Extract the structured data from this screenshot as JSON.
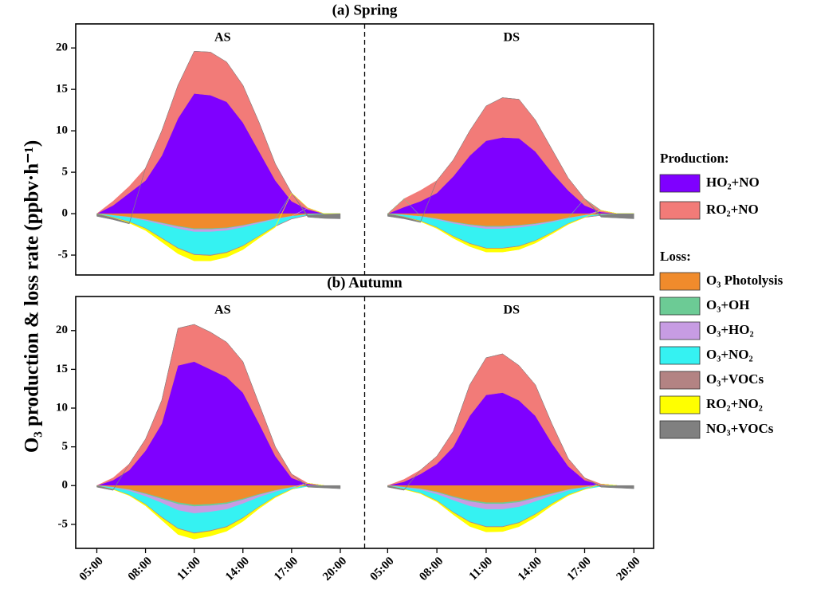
{
  "y_label": "O₃ production & loss rate (ppbv·h⁻¹)",
  "legend": {
    "groups": [
      {
        "title": "Production:",
        "start": 0,
        "count": 2
      },
      {
        "title": "Loss:",
        "start": 2,
        "count": 7
      }
    ]
  },
  "series": [
    {
      "name": "HO₂+NO",
      "color": "#7f00ff"
    },
    {
      "name": "RO₂+NO",
      "color": "#f27b78"
    },
    {
      "name": "O₃ Photolysis",
      "color": "#f08b2c"
    },
    {
      "name": "O₃+OH",
      "color": "#6ccb95"
    },
    {
      "name": "O₃+HO₂",
      "color": "#c79ce3"
    },
    {
      "name": "O₃+NO₂",
      "color": "#35f2f2"
    },
    {
      "name": "O₃+VOCs",
      "color": "#b38383"
    },
    {
      "name": "RO₂+NO₂",
      "color": "#ffff00"
    },
    {
      "name": "NO₃+VOCs",
      "color": "#808080"
    }
  ],
  "chart_data": [
    {
      "type": "stacked_area",
      "title": "(a) Spring",
      "ylim": [
        -7.4,
        22.9
      ],
      "yticks": [
        -5,
        0,
        5,
        10,
        15,
        20
      ],
      "sections": [
        {
          "label": "AS",
          "xlim": [
            3.7,
            21.5
          ],
          "x": [
            5,
            6,
            7,
            8,
            9,
            10,
            11,
            12,
            13,
            14,
            15,
            16,
            17,
            18,
            19,
            20
          ],
          "values": [
            [
              0,
              1,
              2.5,
              4,
              7,
              11.5,
              14.5,
              14.3,
              13.5,
              11,
              7.5,
              4,
              1.5,
              0.5,
              0,
              0
            ],
            [
              0,
              0.5,
              0.8,
              1.5,
              3,
              4,
              5.1,
              5.2,
              4.8,
              4.5,
              3.5,
              2,
              1,
              0.2,
              0,
              0
            ],
            [
              0,
              -0.2,
              -0.4,
              -0.7,
              -1.1,
              -1.5,
              -1.8,
              -1.8,
              -1.7,
              -1.4,
              -1,
              -0.6,
              -0.3,
              -0.1,
              -0.05,
              0
            ],
            [
              0,
              -0.01,
              -0.02,
              -0.04,
              -0.06,
              -0.08,
              -0.1,
              -0.1,
              -0.08,
              -0.06,
              -0.04,
              -0.02,
              0,
              0,
              0,
              0
            ],
            [
              0,
              -0.03,
              -0.06,
              -0.12,
              -0.18,
              -0.25,
              -0.3,
              -0.3,
              -0.27,
              -0.2,
              -0.14,
              -0.07,
              -0.02,
              0,
              0,
              0
            ],
            [
              0,
              -0.2,
              -0.5,
              -0.9,
              -1.6,
              -2.3,
              -2.7,
              -2.8,
              -2.6,
              -2.2,
              -1.5,
              -0.8,
              -0.3,
              -0.1,
              0,
              0
            ],
            [
              -0.02,
              -0.03,
              -0.05,
              -0.06,
              -0.08,
              -0.1,
              -0.1,
              -0.1,
              -0.1,
              -0.08,
              -0.06,
              -0.05,
              -0.03,
              -0.02,
              -0.02,
              -0.02
            ],
            [
              0,
              -0.05,
              -0.1,
              -0.2,
              -0.4,
              -0.6,
              -0.7,
              -0.6,
              -0.5,
              -0.4,
              -0.2,
              -0.1,
              0,
              0,
              0,
              0
            ],
            [
              -0.3,
              -0.2,
              -0.1,
              0,
              0,
              0,
              0,
              0,
              0,
              0,
              0,
              0,
              0,
              -0.2,
              -0.5,
              -0.6
            ]
          ]
        },
        {
          "label": "DS",
          "xlim": [
            3.6,
            21.2
          ],
          "x": [
            5,
            6,
            7,
            8,
            9,
            10,
            11,
            12,
            13,
            14,
            15,
            16,
            17,
            18,
            19,
            20
          ],
          "values": [
            [
              0,
              0.8,
              1.5,
              2.5,
              4.5,
              7,
              8.8,
              9.2,
              9.1,
              7.5,
              5,
              2.8,
              1,
              0.2,
              0,
              0
            ],
            [
              0,
              1,
              1.3,
              1.5,
              2,
              3,
              4.2,
              4.8,
              4.7,
              3.8,
              2.8,
              1.5,
              0.8,
              0.2,
              0,
              0
            ],
            [
              0,
              -0.15,
              -0.3,
              -0.6,
              -1,
              -1.3,
              -1.5,
              -1.5,
              -1.4,
              -1.2,
              -0.9,
              -0.5,
              -0.2,
              -0.1,
              0,
              0
            ],
            [
              0,
              0,
              -0.02,
              -0.04,
              -0.06,
              -0.08,
              -0.1,
              -0.1,
              -0.08,
              -0.06,
              -0.04,
              -0.02,
              0,
              0,
              0,
              0
            ],
            [
              0,
              -0.02,
              -0.05,
              -0.1,
              -0.15,
              -0.2,
              -0.25,
              -0.25,
              -0.22,
              -0.18,
              -0.12,
              -0.06,
              -0.02,
              0,
              0,
              0
            ],
            [
              0,
              -0.2,
              -0.5,
              -0.9,
              -1.5,
              -2,
              -2.3,
              -2.3,
              -2.2,
              -1.8,
              -1.2,
              -0.6,
              -0.2,
              -0.1,
              0,
              0
            ],
            [
              -0.02,
              -0.03,
              -0.04,
              -0.05,
              -0.06,
              -0.08,
              -0.08,
              -0.08,
              -0.08,
              -0.06,
              -0.05,
              -0.04,
              -0.03,
              -0.02,
              -0.02,
              -0.02
            ],
            [
              0,
              -0.02,
              -0.05,
              -0.1,
              -0.2,
              -0.3,
              -0.4,
              -0.4,
              -0.35,
              -0.25,
              -0.15,
              -0.08,
              -0.02,
              0,
              0,
              0
            ],
            [
              -0.3,
              -0.2,
              -0.1,
              0,
              0,
              0,
              0,
              0,
              0,
              0,
              0,
              0,
              0,
              -0.2,
              -0.5,
              -0.6
            ]
          ]
        }
      ]
    },
    {
      "type": "stacked_area",
      "title": "(b) Autumn",
      "ylim": [
        -8.1,
        24.4
      ],
      "yticks": [
        -5,
        0,
        5,
        10,
        15,
        20
      ],
      "sections": [
        {
          "label": "AS",
          "xlim": [
            3.7,
            21.5
          ],
          "x": [
            5,
            6,
            7,
            8,
            9,
            10,
            11,
            12,
            13,
            14,
            15,
            16,
            17,
            18,
            19,
            20
          ],
          "xticks": [
            {
              "value": 5,
              "label": "05:00"
            },
            {
              "value": 8,
              "label": "08:00"
            },
            {
              "value": 11,
              "label": "11:00"
            },
            {
              "value": 14,
              "label": "14:00"
            },
            {
              "value": 17,
              "label": "17:00"
            },
            {
              "value": 20,
              "label": "20:00"
            }
          ],
          "values": [
            [
              0,
              0.7,
              2,
              4.5,
              8,
              15.5,
              16,
              15,
              14,
              12,
              8,
              3.8,
              1,
              0.2,
              0,
              0
            ],
            [
              0,
              0.3,
              0.8,
              1.5,
              3,
              4.8,
              4.8,
              4.8,
              4.5,
              4,
              2.5,
              1.2,
              0.5,
              0.1,
              0,
              0
            ],
            [
              0,
              -0.2,
              -0.5,
              -1,
              -1.6,
              -2.2,
              -2.5,
              -2.4,
              -2.2,
              -1.7,
              -1.1,
              -0.6,
              -0.2,
              -0.05,
              0,
              0
            ],
            [
              0,
              -0.02,
              -0.05,
              -0.1,
              -0.15,
              -0.2,
              -0.2,
              -0.2,
              -0.18,
              -0.14,
              -0.1,
              -0.05,
              -0.02,
              0,
              0,
              0
            ],
            [
              0,
              -0.05,
              -0.15,
              -0.3,
              -0.5,
              -0.8,
              -0.9,
              -0.8,
              -0.7,
              -0.5,
              -0.3,
              -0.15,
              -0.05,
              0,
              0,
              0
            ],
            [
              0,
              -0.2,
              -0.5,
              -1,
              -1.8,
              -2.3,
              -2.5,
              -2.4,
              -2.2,
              -1.8,
              -1.2,
              -0.6,
              -0.2,
              -0.05,
              0,
              0
            ],
            [
              0,
              -0.02,
              -0.04,
              -0.06,
              -0.1,
              -0.1,
              -0.1,
              -0.1,
              -0.1,
              -0.08,
              -0.06,
              -0.04,
              -0.02,
              0,
              0,
              0
            ],
            [
              0,
              -0.02,
              -0.05,
              -0.15,
              -0.3,
              -0.7,
              -0.7,
              -0.6,
              -0.5,
              -0.4,
              -0.2,
              -0.1,
              -0.02,
              0,
              0,
              0
            ],
            [
              -0.2,
              -0.1,
              0,
              0,
              0,
              0,
              0,
              0,
              0,
              0,
              0,
              0,
              0,
              -0.1,
              -0.3,
              -0.4
            ]
          ]
        },
        {
          "label": "DS",
          "xlim": [
            3.6,
            21.2
          ],
          "x": [
            5,
            6,
            7,
            8,
            9,
            10,
            11,
            12,
            13,
            14,
            15,
            16,
            17,
            18,
            19,
            20
          ],
          "xticks": [
            {
              "value": 5,
              "label": "05:00"
            },
            {
              "value": 8,
              "label": "08:00"
            },
            {
              "value": 11,
              "label": "11:00"
            },
            {
              "value": 14,
              "label": "14:00"
            },
            {
              "value": 17,
              "label": "17:00"
            },
            {
              "value": 20,
              "label": "20:00"
            }
          ],
          "values": [
            [
              0,
              0.5,
              1.5,
              2.8,
              5,
              9,
              11.7,
              12,
              11,
              9,
              5.5,
              2.5,
              0.7,
              0.1,
              0,
              0
            ],
            [
              0,
              0.3,
              0.5,
              1,
              2,
              4,
              4.8,
              5,
              4.5,
              4,
              2.5,
              1,
              0.3,
              0.1,
              0,
              0
            ],
            [
              0,
              -0.2,
              -0.4,
              -0.8,
              -1.4,
              -1.9,
              -2.2,
              -2.2,
              -2,
              -1.5,
              -1,
              -0.5,
              -0.2,
              -0.05,
              0,
              0
            ],
            [
              0,
              -0.02,
              -0.04,
              -0.08,
              -0.12,
              -0.16,
              -0.18,
              -0.18,
              -0.16,
              -0.12,
              -0.08,
              -0.04,
              -0.02,
              0,
              0,
              0
            ],
            [
              0,
              -0.04,
              -0.12,
              -0.25,
              -0.4,
              -0.6,
              -0.7,
              -0.7,
              -0.6,
              -0.45,
              -0.25,
              -0.12,
              -0.04,
              0,
              0,
              0
            ],
            [
              0,
              -0.2,
              -0.4,
              -0.8,
              -1.5,
              -2,
              -2.2,
              -2.2,
              -2,
              -1.6,
              -1,
              -0.5,
              -0.2,
              -0.05,
              0,
              0
            ],
            [
              0,
              -0.02,
              -0.03,
              -0.05,
              -0.08,
              -0.1,
              -0.1,
              -0.1,
              -0.09,
              -0.07,
              -0.05,
              -0.03,
              -0.02,
              0,
              0,
              0
            ],
            [
              0,
              -0.02,
              -0.05,
              -0.12,
              -0.25,
              -0.5,
              -0.6,
              -0.55,
              -0.45,
              -0.35,
              -0.2,
              -0.1,
              -0.02,
              0,
              0,
              0
            ],
            [
              -0.2,
              -0.1,
              0,
              0,
              0,
              0,
              0,
              0,
              0,
              0,
              0,
              0,
              0,
              -0.1,
              -0.3,
              -0.4
            ]
          ]
        }
      ]
    }
  ]
}
